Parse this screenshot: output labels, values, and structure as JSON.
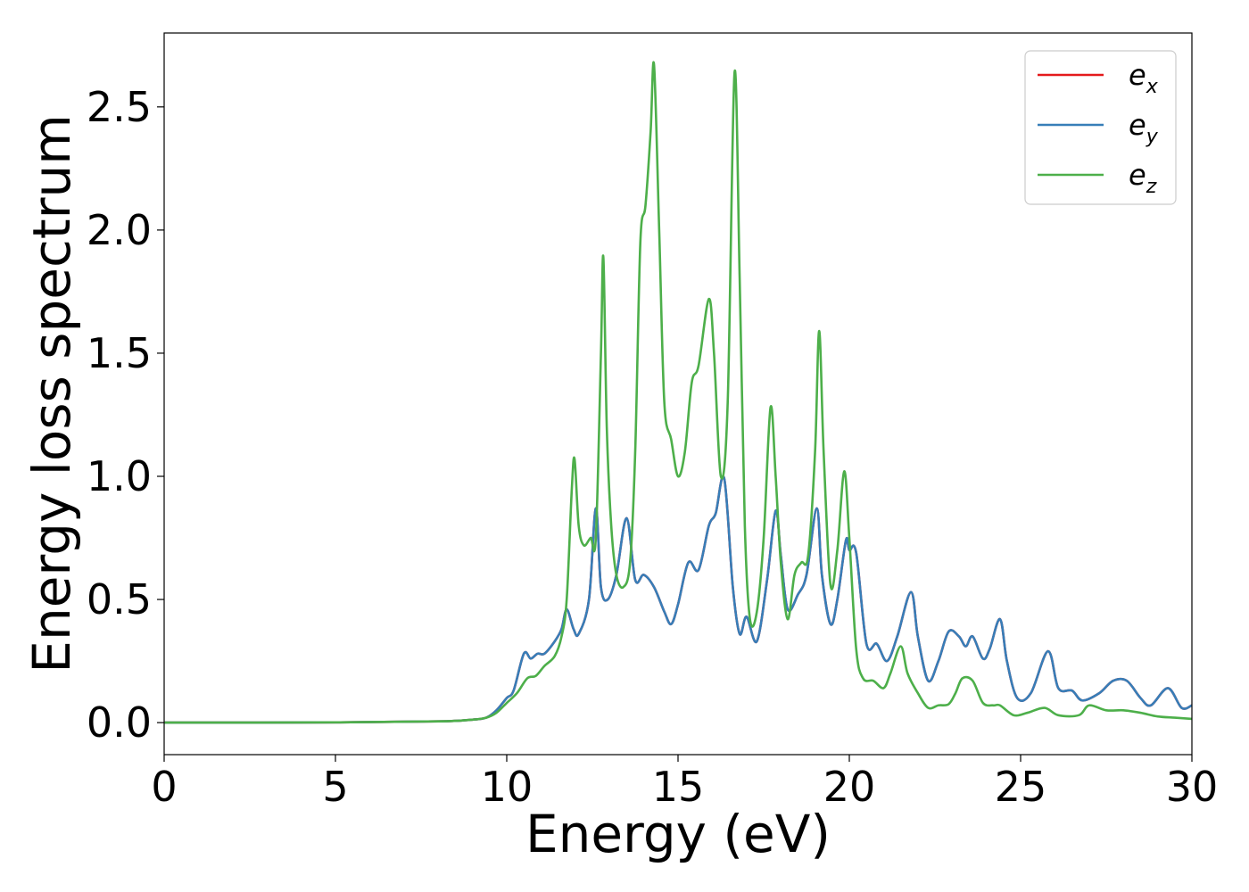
{
  "chart_data": {
    "type": "line",
    "xlabel": "Energy (eV)",
    "ylabel": "Energy loss spectrum",
    "xlim": [
      0,
      30
    ],
    "ylim": [
      -0.13,
      2.8
    ],
    "xticks": [
      0,
      5,
      10,
      15,
      20,
      25,
      30
    ],
    "yticks": [
      0.0,
      0.5,
      1.0,
      1.5,
      2.0,
      2.5
    ],
    "xtick_labels": [
      "0",
      "5",
      "10",
      "15",
      "20",
      "25",
      "30"
    ],
    "ytick_labels": [
      "0.0",
      "0.5",
      "1.0",
      "1.5",
      "2.0",
      "2.5"
    ],
    "grid": false,
    "legend_position": "top-right",
    "series": [
      {
        "name": "e",
        "subscript": "x",
        "color": "#e41a1c",
        "points": [
          [
            0,
            0.0
          ],
          [
            5,
            0.001
          ],
          [
            8,
            0.005
          ],
          [
            9,
            0.012
          ],
          [
            9.4,
            0.02
          ],
          [
            9.7,
            0.05
          ],
          [
            10,
            0.1
          ],
          [
            10.2,
            0.13
          ],
          [
            10.5,
            0.28
          ],
          [
            10.7,
            0.26
          ],
          [
            10.9,
            0.28
          ],
          [
            11.1,
            0.28
          ],
          [
            11.4,
            0.33
          ],
          [
            11.6,
            0.38
          ],
          [
            11.75,
            0.46
          ],
          [
            11.95,
            0.38
          ],
          [
            12.1,
            0.36
          ],
          [
            12.4,
            0.5
          ],
          [
            12.6,
            0.87
          ],
          [
            12.75,
            0.55
          ],
          [
            12.95,
            0.5
          ],
          [
            13.2,
            0.6
          ],
          [
            13.5,
            0.83
          ],
          [
            13.75,
            0.58
          ],
          [
            14.0,
            0.6
          ],
          [
            14.3,
            0.55
          ],
          [
            14.6,
            0.45
          ],
          [
            14.8,
            0.4
          ],
          [
            15.0,
            0.48
          ],
          [
            15.3,
            0.65
          ],
          [
            15.6,
            0.62
          ],
          [
            15.9,
            0.8
          ],
          [
            16.1,
            0.85
          ],
          [
            16.35,
            0.99
          ],
          [
            16.6,
            0.55
          ],
          [
            16.8,
            0.36
          ],
          [
            17.0,
            0.43
          ],
          [
            17.3,
            0.33
          ],
          [
            17.6,
            0.58
          ],
          [
            17.85,
            0.86
          ],
          [
            18.0,
            0.68
          ],
          [
            18.2,
            0.46
          ],
          [
            18.5,
            0.52
          ],
          [
            18.75,
            0.6
          ],
          [
            19.05,
            0.87
          ],
          [
            19.2,
            0.6
          ],
          [
            19.45,
            0.4
          ],
          [
            19.65,
            0.5
          ],
          [
            19.9,
            0.74
          ],
          [
            20.0,
            0.7
          ],
          [
            20.2,
            0.69
          ],
          [
            20.5,
            0.32
          ],
          [
            20.8,
            0.32
          ],
          [
            21.1,
            0.25
          ],
          [
            21.4,
            0.35
          ],
          [
            21.8,
            0.53
          ],
          [
            22.0,
            0.35
          ],
          [
            22.3,
            0.17
          ],
          [
            22.6,
            0.25
          ],
          [
            22.9,
            0.37
          ],
          [
            23.2,
            0.35
          ],
          [
            23.4,
            0.31
          ],
          [
            23.6,
            0.35
          ],
          [
            23.9,
            0.26
          ],
          [
            24.1,
            0.3
          ],
          [
            24.4,
            0.42
          ],
          [
            24.6,
            0.25
          ],
          [
            24.9,
            0.1
          ],
          [
            25.3,
            0.12
          ],
          [
            25.8,
            0.29
          ],
          [
            26.1,
            0.14
          ],
          [
            26.5,
            0.13
          ],
          [
            26.8,
            0.09
          ],
          [
            27.3,
            0.12
          ],
          [
            27.7,
            0.17
          ],
          [
            28.1,
            0.17
          ],
          [
            28.5,
            0.1
          ],
          [
            28.8,
            0.07
          ],
          [
            29.3,
            0.14
          ],
          [
            29.7,
            0.06
          ],
          [
            30.0,
            0.07
          ]
        ]
      },
      {
        "name": "e",
        "subscript": "y",
        "color": "#377eb8",
        "points": [
          [
            0,
            0.0
          ],
          [
            5,
            0.001
          ],
          [
            8,
            0.005
          ],
          [
            9,
            0.012
          ],
          [
            9.4,
            0.02
          ],
          [
            9.7,
            0.05
          ],
          [
            10,
            0.1
          ],
          [
            10.2,
            0.13
          ],
          [
            10.5,
            0.28
          ],
          [
            10.7,
            0.26
          ],
          [
            10.9,
            0.28
          ],
          [
            11.1,
            0.28
          ],
          [
            11.4,
            0.33
          ],
          [
            11.6,
            0.38
          ],
          [
            11.75,
            0.46
          ],
          [
            11.95,
            0.38
          ],
          [
            12.1,
            0.36
          ],
          [
            12.4,
            0.5
          ],
          [
            12.6,
            0.87
          ],
          [
            12.75,
            0.55
          ],
          [
            12.95,
            0.5
          ],
          [
            13.2,
            0.6
          ],
          [
            13.5,
            0.83
          ],
          [
            13.75,
            0.58
          ],
          [
            14.0,
            0.6
          ],
          [
            14.3,
            0.55
          ],
          [
            14.6,
            0.45
          ],
          [
            14.8,
            0.4
          ],
          [
            15.0,
            0.48
          ],
          [
            15.3,
            0.65
          ],
          [
            15.6,
            0.62
          ],
          [
            15.9,
            0.8
          ],
          [
            16.1,
            0.85
          ],
          [
            16.35,
            0.99
          ],
          [
            16.6,
            0.55
          ],
          [
            16.8,
            0.36
          ],
          [
            17.0,
            0.43
          ],
          [
            17.3,
            0.33
          ],
          [
            17.6,
            0.58
          ],
          [
            17.85,
            0.86
          ],
          [
            18.0,
            0.68
          ],
          [
            18.2,
            0.46
          ],
          [
            18.5,
            0.52
          ],
          [
            18.75,
            0.6
          ],
          [
            19.05,
            0.87
          ],
          [
            19.2,
            0.6
          ],
          [
            19.45,
            0.4
          ],
          [
            19.65,
            0.5
          ],
          [
            19.9,
            0.74
          ],
          [
            20.0,
            0.7
          ],
          [
            20.2,
            0.69
          ],
          [
            20.5,
            0.32
          ],
          [
            20.8,
            0.32
          ],
          [
            21.1,
            0.25
          ],
          [
            21.4,
            0.35
          ],
          [
            21.8,
            0.53
          ],
          [
            22.0,
            0.35
          ],
          [
            22.3,
            0.17
          ],
          [
            22.6,
            0.25
          ],
          [
            22.9,
            0.37
          ],
          [
            23.2,
            0.35
          ],
          [
            23.4,
            0.31
          ],
          [
            23.6,
            0.35
          ],
          [
            23.9,
            0.26
          ],
          [
            24.1,
            0.3
          ],
          [
            24.4,
            0.42
          ],
          [
            24.6,
            0.25
          ],
          [
            24.9,
            0.1
          ],
          [
            25.3,
            0.12
          ],
          [
            25.8,
            0.29
          ],
          [
            26.1,
            0.14
          ],
          [
            26.5,
            0.13
          ],
          [
            26.8,
            0.09
          ],
          [
            27.3,
            0.12
          ],
          [
            27.7,
            0.17
          ],
          [
            28.1,
            0.17
          ],
          [
            28.5,
            0.1
          ],
          [
            28.8,
            0.07
          ],
          [
            29.3,
            0.14
          ],
          [
            29.7,
            0.06
          ],
          [
            30.0,
            0.07
          ]
        ]
      },
      {
        "name": "e",
        "subscript": "z",
        "color": "#4daf4a",
        "points": [
          [
            0,
            0.0
          ],
          [
            5,
            0.001
          ],
          [
            8,
            0.005
          ],
          [
            9,
            0.012
          ],
          [
            9.4,
            0.02
          ],
          [
            9.7,
            0.04
          ],
          [
            10,
            0.08
          ],
          [
            10.3,
            0.12
          ],
          [
            10.6,
            0.18
          ],
          [
            10.85,
            0.19
          ],
          [
            11.1,
            0.23
          ],
          [
            11.4,
            0.27
          ],
          [
            11.6,
            0.35
          ],
          [
            11.75,
            0.5
          ],
          [
            11.9,
            0.95
          ],
          [
            11.98,
            1.07
          ],
          [
            12.1,
            0.8
          ],
          [
            12.25,
            0.72
          ],
          [
            12.45,
            0.75
          ],
          [
            12.6,
            0.75
          ],
          [
            12.75,
            1.5
          ],
          [
            12.82,
            1.89
          ],
          [
            12.92,
            1.2
          ],
          [
            13.05,
            0.8
          ],
          [
            13.2,
            0.6
          ],
          [
            13.4,
            0.55
          ],
          [
            13.6,
            0.65
          ],
          [
            13.75,
            1.1
          ],
          [
            13.9,
            1.95
          ],
          [
            14.05,
            2.1
          ],
          [
            14.2,
            2.4
          ],
          [
            14.3,
            2.67
          ],
          [
            14.45,
            2.0
          ],
          [
            14.6,
            1.3
          ],
          [
            14.8,
            1.15
          ],
          [
            15.0,
            1.0
          ],
          [
            15.2,
            1.1
          ],
          [
            15.4,
            1.38
          ],
          [
            15.6,
            1.45
          ],
          [
            15.9,
            1.72
          ],
          [
            16.05,
            1.5
          ],
          [
            16.25,
            1.0
          ],
          [
            16.45,
            1.3
          ],
          [
            16.65,
            2.64
          ],
          [
            16.8,
            1.8
          ],
          [
            16.95,
            0.8
          ],
          [
            17.1,
            0.42
          ],
          [
            17.3,
            0.45
          ],
          [
            17.5,
            0.75
          ],
          [
            17.7,
            1.28
          ],
          [
            17.85,
            1.0
          ],
          [
            18.0,
            0.65
          ],
          [
            18.2,
            0.42
          ],
          [
            18.4,
            0.6
          ],
          [
            18.6,
            0.65
          ],
          [
            18.8,
            0.68
          ],
          [
            19.0,
            1.1
          ],
          [
            19.12,
            1.59
          ],
          [
            19.25,
            1.1
          ],
          [
            19.45,
            0.56
          ],
          [
            19.65,
            0.7
          ],
          [
            19.85,
            1.02
          ],
          [
            20.0,
            0.75
          ],
          [
            20.2,
            0.3
          ],
          [
            20.4,
            0.18
          ],
          [
            20.7,
            0.17
          ],
          [
            21.0,
            0.14
          ],
          [
            21.2,
            0.2
          ],
          [
            21.5,
            0.31
          ],
          [
            21.7,
            0.2
          ],
          [
            22.0,
            0.12
          ],
          [
            22.3,
            0.06
          ],
          [
            22.6,
            0.07
          ],
          [
            22.9,
            0.075
          ],
          [
            23.1,
            0.12
          ],
          [
            23.3,
            0.18
          ],
          [
            23.6,
            0.17
          ],
          [
            23.9,
            0.08
          ],
          [
            24.2,
            0.07
          ],
          [
            24.4,
            0.07
          ],
          [
            24.8,
            0.03
          ],
          [
            25.2,
            0.04
          ],
          [
            25.7,
            0.06
          ],
          [
            26.1,
            0.03
          ],
          [
            26.7,
            0.03
          ],
          [
            27.0,
            0.07
          ],
          [
            27.5,
            0.05
          ],
          [
            28.0,
            0.05
          ],
          [
            28.5,
            0.04
          ],
          [
            29.0,
            0.025
          ],
          [
            29.5,
            0.02
          ],
          [
            30.0,
            0.015
          ]
        ]
      }
    ]
  }
}
